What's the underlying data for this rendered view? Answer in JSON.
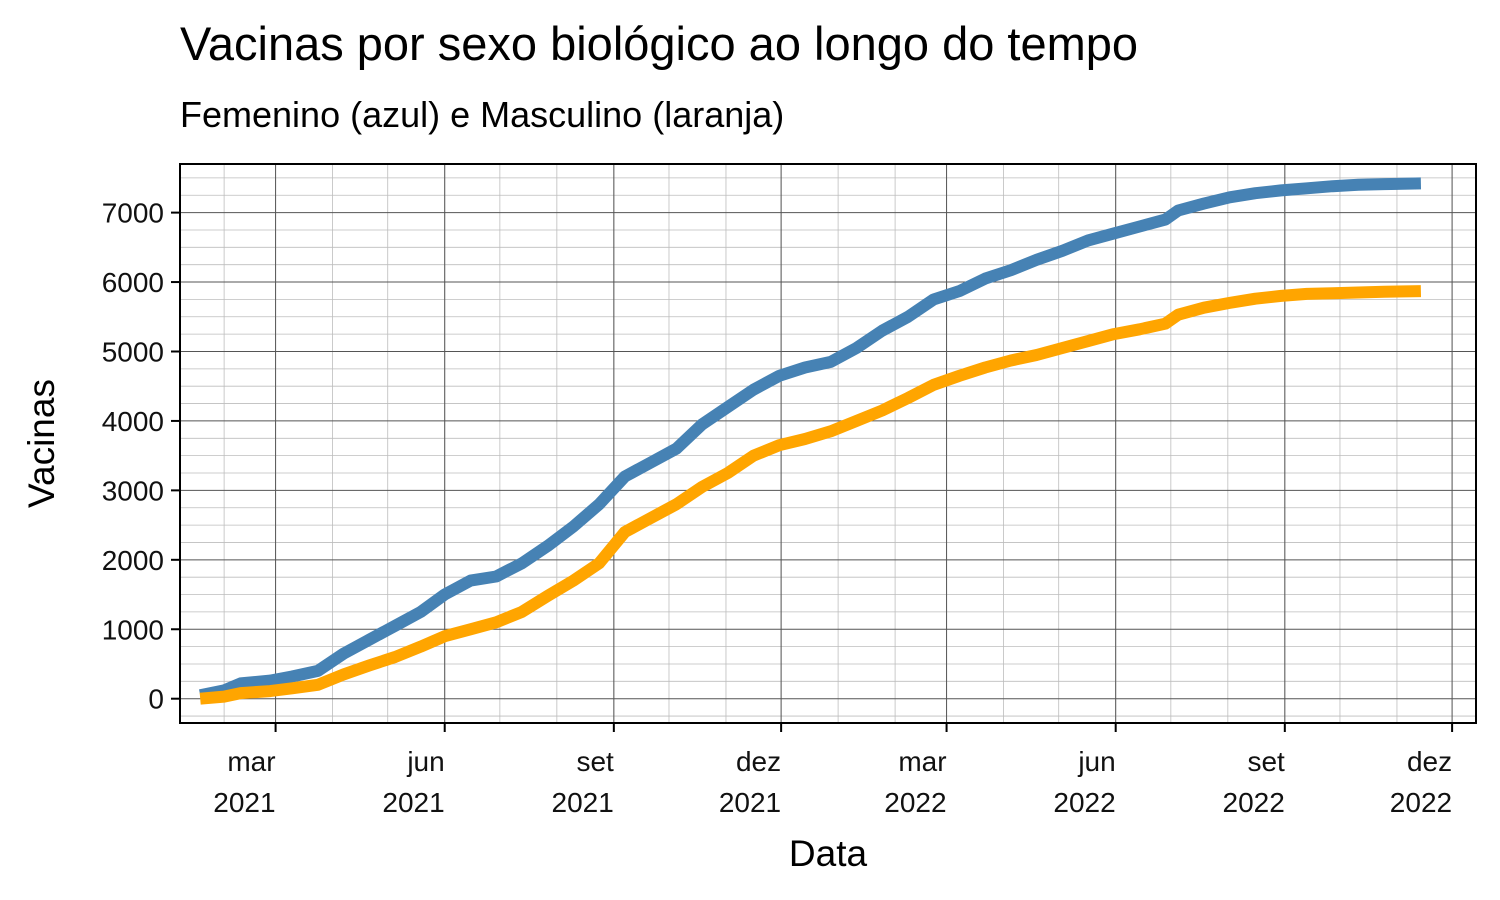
{
  "chart_data": {
    "type": "line",
    "title": "Vacinas por sexo biológico ao longo do tempo",
    "subtitle": "Femenino (azul) e Masculino (laranja)",
    "xlabel": "Data",
    "ylabel": "Vacinas",
    "xlim": [
      "2021-01-08",
      "2022-12-14"
    ],
    "ylim": [
      -350,
      7700
    ],
    "grid": true,
    "legend": "none",
    "x_ticks": [
      {
        "date": "2021-03-01",
        "line1": "mar",
        "line2": "2021"
      },
      {
        "date": "2021-06-01",
        "line1": "jun",
        "line2": "2021"
      },
      {
        "date": "2021-09-01",
        "line1": "set",
        "line2": "2021"
      },
      {
        "date": "2021-12-01",
        "line1": "dez",
        "line2": "2021"
      },
      {
        "date": "2022-03-01",
        "line1": "mar",
        "line2": "2022"
      },
      {
        "date": "2022-06-01",
        "line1": "jun",
        "line2": "2022"
      },
      {
        "date": "2022-09-01",
        "line1": "set",
        "line2": "2022"
      },
      {
        "date": "2022-12-01",
        "line1": "dez",
        "line2": "2022"
      }
    ],
    "y_ticks": [
      "0",
      "1000",
      "2000",
      "3000",
      "4000",
      "5000",
      "6000",
      "7000"
    ],
    "series": [
      {
        "color": "#4682B4",
        "points": [
          [
            "2021-01-19",
            50
          ],
          [
            "2021-02-01",
            120
          ],
          [
            "2021-02-10",
            220
          ],
          [
            "2021-02-26",
            260
          ],
          [
            "2021-03-10",
            320
          ],
          [
            "2021-03-24",
            400
          ],
          [
            "2021-04-07",
            650
          ],
          [
            "2021-04-21",
            850
          ],
          [
            "2021-05-05",
            1050
          ],
          [
            "2021-05-19",
            1250
          ],
          [
            "2021-06-01",
            1500
          ],
          [
            "2021-06-15",
            1700
          ],
          [
            "2021-06-29",
            1760
          ],
          [
            "2021-07-13",
            1950
          ],
          [
            "2021-07-27",
            2200
          ],
          [
            "2021-08-10",
            2480
          ],
          [
            "2021-08-24",
            2800
          ],
          [
            "2021-09-07",
            3200
          ],
          [
            "2021-09-21",
            3400
          ],
          [
            "2021-10-05",
            3600
          ],
          [
            "2021-10-19",
            3950
          ],
          [
            "2021-11-02",
            4200
          ],
          [
            "2021-11-16",
            4450
          ],
          [
            "2021-11-30",
            4650
          ],
          [
            "2021-12-14",
            4770
          ],
          [
            "2021-12-28",
            4850
          ],
          [
            "2022-01-11",
            5050
          ],
          [
            "2022-01-25",
            5300
          ],
          [
            "2022-02-08",
            5500
          ],
          [
            "2022-02-22",
            5750
          ],
          [
            "2022-03-08",
            5870
          ],
          [
            "2022-03-22",
            6050
          ],
          [
            "2022-04-05",
            6170
          ],
          [
            "2022-04-19",
            6320
          ],
          [
            "2022-05-03",
            6450
          ],
          [
            "2022-05-17",
            6600
          ],
          [
            "2022-05-31",
            6700
          ],
          [
            "2022-06-14",
            6800
          ],
          [
            "2022-06-28",
            6900
          ],
          [
            "2022-07-05",
            7030
          ],
          [
            "2022-07-19",
            7130
          ],
          [
            "2022-08-02",
            7220
          ],
          [
            "2022-08-16",
            7280
          ],
          [
            "2022-08-30",
            7320
          ],
          [
            "2022-09-13",
            7350
          ],
          [
            "2022-09-27",
            7380
          ],
          [
            "2022-10-11",
            7400
          ],
          [
            "2022-10-25",
            7410
          ],
          [
            "2022-11-14",
            7420
          ]
        ]
      },
      {
        "color": "#FFA500",
        "points": [
          [
            "2021-01-19",
            0
          ],
          [
            "2021-02-01",
            30
          ],
          [
            "2021-02-10",
            80
          ],
          [
            "2021-02-26",
            110
          ],
          [
            "2021-03-10",
            150
          ],
          [
            "2021-03-24",
            200
          ],
          [
            "2021-04-07",
            350
          ],
          [
            "2021-04-21",
            480
          ],
          [
            "2021-05-05",
            600
          ],
          [
            "2021-05-19",
            750
          ],
          [
            "2021-06-01",
            900
          ],
          [
            "2021-06-15",
            1000
          ],
          [
            "2021-06-29",
            1100
          ],
          [
            "2021-07-13",
            1250
          ],
          [
            "2021-07-27",
            1480
          ],
          [
            "2021-08-10",
            1700
          ],
          [
            "2021-08-24",
            1950
          ],
          [
            "2021-09-07",
            2400
          ],
          [
            "2021-09-21",
            2600
          ],
          [
            "2021-10-05",
            2800
          ],
          [
            "2021-10-19",
            3050
          ],
          [
            "2021-11-02",
            3250
          ],
          [
            "2021-11-16",
            3500
          ],
          [
            "2021-11-30",
            3650
          ],
          [
            "2021-12-14",
            3740
          ],
          [
            "2021-12-28",
            3850
          ],
          [
            "2022-01-11",
            4000
          ],
          [
            "2022-01-25",
            4150
          ],
          [
            "2022-02-08",
            4330
          ],
          [
            "2022-02-22",
            4520
          ],
          [
            "2022-03-08",
            4650
          ],
          [
            "2022-03-22",
            4770
          ],
          [
            "2022-04-05",
            4870
          ],
          [
            "2022-04-19",
            4950
          ],
          [
            "2022-05-03",
            5050
          ],
          [
            "2022-05-17",
            5150
          ],
          [
            "2022-05-31",
            5250
          ],
          [
            "2022-06-14",
            5320
          ],
          [
            "2022-06-28",
            5400
          ],
          [
            "2022-07-05",
            5530
          ],
          [
            "2022-07-19",
            5630
          ],
          [
            "2022-08-02",
            5700
          ],
          [
            "2022-08-16",
            5760
          ],
          [
            "2022-08-30",
            5800
          ],
          [
            "2022-09-13",
            5830
          ],
          [
            "2022-09-27",
            5840
          ],
          [
            "2022-10-11",
            5850
          ],
          [
            "2022-10-25",
            5860
          ],
          [
            "2022-11-14",
            5870
          ]
        ]
      }
    ]
  }
}
